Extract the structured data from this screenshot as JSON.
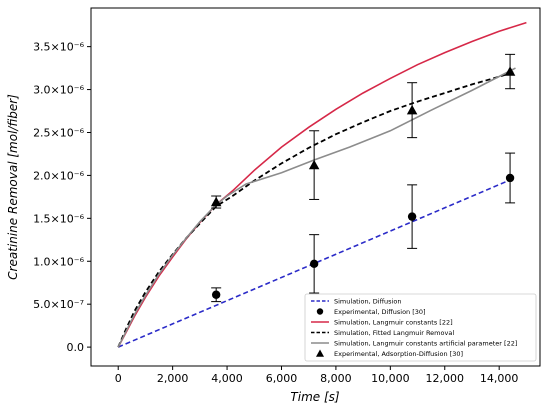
{
  "chart_data": {
    "type": "line",
    "title": "",
    "xlabel": "Time [s]",
    "ylabel": "Creatinine Removal [mol/fiber]",
    "xlim": [
      -1000,
      15500
    ],
    "ylim": [
      -2.2e-07,
      3.95e-06
    ],
    "x_ticks": [
      0,
      2000,
      4000,
      6000,
      8000,
      10000,
      12000,
      14000
    ],
    "x_tick_labels": [
      "0",
      "2,000",
      "4,000",
      "6,000",
      "8,000",
      "10,000",
      "12,000",
      "14,000"
    ],
    "y_ticks": [
      0,
      5e-07,
      1e-06,
      1.5e-06,
      2e-06,
      2.5e-06,
      3e-06,
      3.5e-06
    ],
    "y_tick_labels": [
      "0.0",
      "5.0×10⁻⁷",
      "1.0×10⁻⁶",
      "1.5×10⁻⁶",
      "2.0×10⁻⁶",
      "2.5×10⁻⁶",
      "3.0×10⁻⁶",
      "3.5×10⁻⁶"
    ],
    "grid": false,
    "legend_position": "bottom-right",
    "series": [
      {
        "name": "Simulation, Diffusion",
        "kind": "line",
        "color": "#2b2bc8",
        "dash": "dashed",
        "x": [
          0,
          14500
        ],
        "y": [
          0,
          1.96e-06
        ]
      },
      {
        "name": "Experimental, Diffusion  [30]",
        "kind": "points",
        "marker": "circle",
        "color": "#000000",
        "x": [
          3600,
          7200,
          10800,
          14400
        ],
        "y": [
          6.1e-07,
          9.7e-07,
          1.52e-06,
          1.97e-06
        ],
        "err": [
          8e-08,
          3.4e-07,
          3.7e-07,
          2.9e-07
        ]
      },
      {
        "name": "Simulation, Langmuir constants  [22]",
        "kind": "line",
        "color": "#d62848",
        "dash": "solid",
        "x": [
          0,
          300,
          600,
          1000,
          1500,
          2000,
          2500,
          3000,
          3600,
          4200,
          5000,
          6000,
          7000,
          8000,
          9000,
          10000,
          11000,
          12000,
          13000,
          14000,
          15000
        ],
        "y": [
          0,
          1.8e-07,
          3.6e-07,
          5.8e-07,
          8.3e-07,
          1.05e-06,
          1.26e-06,
          1.45e-06,
          1.66e-06,
          1.82e-06,
          2.06e-06,
          2.33e-06,
          2.56e-06,
          2.77e-06,
          2.96e-06,
          3.13e-06,
          3.29e-06,
          3.43e-06,
          3.56e-06,
          3.68e-06,
          3.78e-06
        ]
      },
      {
        "name": "Simulation, Fitted Langmuir Removal",
        "kind": "line",
        "color": "#000000",
        "dash": "dashed",
        "x": [
          0,
          300,
          600,
          1000,
          1500,
          2000,
          2500,
          3000,
          3600,
          4200,
          5000,
          6000,
          7000,
          8000,
          9000,
          10000,
          11000,
          12000,
          13000,
          14000,
          14600
        ],
        "y": [
          0,
          2.2e-07,
          4.2e-07,
          6.4e-07,
          8.8e-07,
          1.08e-06,
          1.27e-06,
          1.44e-06,
          1.64e-06,
          1.76e-06,
          1.94e-06,
          2.14e-06,
          2.32e-06,
          2.48e-06,
          2.62e-06,
          2.75e-06,
          2.86e-06,
          2.96e-06,
          3.06e-06,
          3.15e-06,
          3.21e-06
        ]
      },
      {
        "name": "Simulation, Langmuir constants artificial parameter [22]",
        "kind": "line",
        "color": "#8c8c8c",
        "dash": "solid",
        "x": [
          0,
          300,
          600,
          1000,
          1500,
          2000,
          2500,
          3000,
          3600,
          4000,
          4700,
          6000,
          7200,
          8500,
          10000,
          11500,
          13000,
          14600
        ],
        "y": [
          0,
          1.9e-07,
          3.8e-07,
          6e-07,
          8.5e-07,
          1.07e-06,
          1.27e-06,
          1.46e-06,
          1.66e-06,
          1.76e-06,
          1.9e-06,
          2.03e-06,
          2.18e-06,
          2.33e-06,
          2.52e-06,
          2.76e-06,
          2.99e-06,
          3.25e-06
        ]
      },
      {
        "name": "Experimental, Adsorption-Diffusion [30]",
        "kind": "points",
        "marker": "triangle",
        "color": "#000000",
        "x": [
          3600,
          7200,
          10800,
          14400
        ],
        "y": [
          1.69e-06,
          2.12e-06,
          2.76e-06,
          3.21e-06
        ],
        "err": [
          7e-08,
          4e-07,
          3.2e-07,
          2e-07
        ]
      }
    ],
    "legend_order": [
      0,
      1,
      2,
      3,
      4,
      5
    ]
  }
}
